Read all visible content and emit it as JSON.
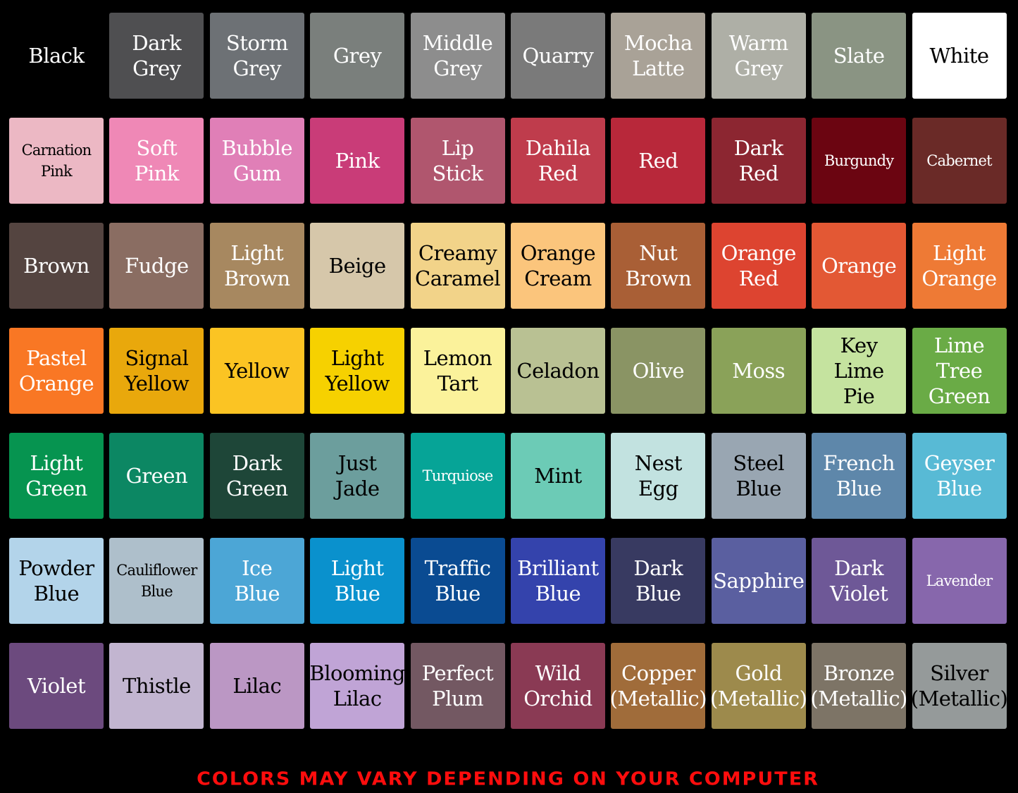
{
  "swatches": [
    {
      "lines": [
        "Black"
      ],
      "color": "#000000",
      "text": "#ffffff"
    },
    {
      "lines": [
        "Dark",
        "Grey"
      ],
      "color": "#4f4f51",
      "text": "#ffffff"
    },
    {
      "lines": [
        "Storm",
        "Grey"
      ],
      "color": "#6d7175",
      "text": "#ffffff"
    },
    {
      "lines": [
        "Grey"
      ],
      "color": "#7a7f7c",
      "text": "#ffffff"
    },
    {
      "lines": [
        "Middle",
        "Grey"
      ],
      "color": "#8d8d8d",
      "text": "#ffffff"
    },
    {
      "lines": [
        "Quarry"
      ],
      "color": "#7a7a7a",
      "text": "#ffffff"
    },
    {
      "lines": [
        "Mocha",
        "Latte"
      ],
      "color": "#a9a297",
      "text": "#ffffff"
    },
    {
      "lines": [
        "Warm",
        "Grey"
      ],
      "color": "#aeafa6",
      "text": "#ffffff"
    },
    {
      "lines": [
        "Slate"
      ],
      "color": "#8a9483",
      "text": "#ffffff"
    },
    {
      "lines": [
        "White"
      ],
      "color": "#ffffff",
      "text": "#000000"
    },
    {
      "lines": [
        "Carnation",
        "Pink"
      ],
      "color": "#ecb8c4",
      "text": "#000000"
    },
    {
      "lines": [
        "Soft",
        "Pink"
      ],
      "color": "#ef88b6",
      "text": "#ffffff"
    },
    {
      "lines": [
        "Bubble",
        "Gum"
      ],
      "color": "#e07fb7",
      "text": "#ffffff"
    },
    {
      "lines": [
        "Pink"
      ],
      "color": "#c93c78",
      "text": "#ffffff"
    },
    {
      "lines": [
        "Lip",
        "Stick"
      ],
      "color": "#b0566e",
      "text": "#ffffff"
    },
    {
      "lines": [
        "Dahila",
        "Red"
      ],
      "color": "#bf3c4c",
      "text": "#ffffff"
    },
    {
      "lines": [
        "Red"
      ],
      "color": "#b8283a",
      "text": "#ffffff"
    },
    {
      "lines": [
        "Dark",
        "Red"
      ],
      "color": "#8c2631",
      "text": "#ffffff"
    },
    {
      "lines": [
        "Burgundy"
      ],
      "color": "#6b0511",
      "text": "#ffffff"
    },
    {
      "lines": [
        "Cabernet"
      ],
      "color": "#6a2a27",
      "text": "#ffffff"
    },
    {
      "lines": [
        "Brown"
      ],
      "color": "#544440",
      "text": "#ffffff"
    },
    {
      "lines": [
        "Fudge"
      ],
      "color": "#8a6d62",
      "text": "#ffffff"
    },
    {
      "lines": [
        "Light",
        "Brown"
      ],
      "color": "#a78860",
      "text": "#ffffff"
    },
    {
      "lines": [
        "Beige"
      ],
      "color": "#d6c7aa",
      "text": "#000000"
    },
    {
      "lines": [
        "Creamy",
        "Caramel"
      ],
      "color": "#f2d389",
      "text": "#000000"
    },
    {
      "lines": [
        "Orange",
        "Cream"
      ],
      "color": "#fbc57c",
      "text": "#000000"
    },
    {
      "lines": [
        "Nut",
        "Brown"
      ],
      "color": "#a95f36",
      "text": "#ffffff"
    },
    {
      "lines": [
        "Orange",
        "Red"
      ],
      "color": "#dd4430",
      "text": "#ffffff"
    },
    {
      "lines": [
        "Orange"
      ],
      "color": "#e35834",
      "text": "#ffffff"
    },
    {
      "lines": [
        "Light",
        "Orange"
      ],
      "color": "#ee7a35",
      "text": "#ffffff"
    },
    {
      "lines": [
        "Pastel",
        "Orange"
      ],
      "color": "#f97724",
      "text": "#ffffff"
    },
    {
      "lines": [
        "Signal",
        "Yellow"
      ],
      "color": "#e9a80c",
      "text": "#000000"
    },
    {
      "lines": [
        "Yellow"
      ],
      "color": "#fbc423",
      "text": "#000000"
    },
    {
      "lines": [
        "Light",
        "Yellow"
      ],
      "color": "#f6d100",
      "text": "#000000"
    },
    {
      "lines": [
        "Lemon",
        "Tart"
      ],
      "color": "#fbf29b",
      "text": "#000000"
    },
    {
      "lines": [
        "Celadon"
      ],
      "color": "#b9c193",
      "text": "#000000"
    },
    {
      "lines": [
        "Olive"
      ],
      "color": "#8a9464",
      "text": "#ffffff"
    },
    {
      "lines": [
        "Moss"
      ],
      "color": "#8aa259",
      "text": "#ffffff"
    },
    {
      "lines": [
        "Key",
        "Lime",
        "Pie"
      ],
      "color": "#c5e39f",
      "text": "#000000"
    },
    {
      "lines": [
        "Lime",
        "Tree",
        "Green"
      ],
      "color": "#6aab46",
      "text": "#ffffff"
    },
    {
      "lines": [
        "Light",
        "Green"
      ],
      "color": "#069450",
      "text": "#ffffff"
    },
    {
      "lines": [
        "Green"
      ],
      "color": "#0c8763",
      "text": "#ffffff"
    },
    {
      "lines": [
        "Dark",
        "Green"
      ],
      "color": "#1e4638",
      "text": "#ffffff"
    },
    {
      "lines": [
        "Just",
        "Jade"
      ],
      "color": "#6c9e9d",
      "text": "#000000"
    },
    {
      "lines": [
        "Turquiose"
      ],
      "color": "#06a497",
      "text": "#ffffff"
    },
    {
      "lines": [
        "Mint"
      ],
      "color": "#6ccbb6",
      "text": "#000000"
    },
    {
      "lines": [
        "Nest",
        "Egg"
      ],
      "color": "#c2e2e0",
      "text": "#000000"
    },
    {
      "lines": [
        "Steel",
        "Blue"
      ],
      "color": "#99a6b2",
      "text": "#000000"
    },
    {
      "lines": [
        "French",
        "Blue"
      ],
      "color": "#5e87aa",
      "text": "#ffffff"
    },
    {
      "lines": [
        "Geyser",
        "Blue"
      ],
      "color": "#58bad5",
      "text": "#ffffff"
    },
    {
      "lines": [
        "Powder",
        "Blue"
      ],
      "color": "#b3d4ea",
      "text": "#000000"
    },
    {
      "lines": [
        "Cauliflower",
        "Blue"
      ],
      "color": "#aebfcb",
      "text": "#000000"
    },
    {
      "lines": [
        "Ice",
        "Blue"
      ],
      "color": "#4ca6d6",
      "text": "#ffffff"
    },
    {
      "lines": [
        "Light",
        "Blue"
      ],
      "color": "#0a91cd",
      "text": "#ffffff"
    },
    {
      "lines": [
        "Traffic",
        "Blue"
      ],
      "color": "#0a4b92",
      "text": "#ffffff"
    },
    {
      "lines": [
        "Brilliant",
        "Blue"
      ],
      "color": "#3443ac",
      "text": "#ffffff"
    },
    {
      "lines": [
        "Dark",
        "Blue"
      ],
      "color": "#383a61",
      "text": "#ffffff"
    },
    {
      "lines": [
        "Sapphire"
      ],
      "color": "#5a5fa0",
      "text": "#ffffff"
    },
    {
      "lines": [
        "Dark",
        "Violet"
      ],
      "color": "#6e5897",
      "text": "#ffffff"
    },
    {
      "lines": [
        "Lavender"
      ],
      "color": "#8767ac",
      "text": "#ffffff"
    },
    {
      "lines": [
        "Violet"
      ],
      "color": "#6c4a7e",
      "text": "#ffffff"
    },
    {
      "lines": [
        "Thistle"
      ],
      "color": "#c2b5d0",
      "text": "#000000"
    },
    {
      "lines": [
        "Lilac"
      ],
      "color": "#bb97c4",
      "text": "#000000"
    },
    {
      "lines": [
        "Blooming",
        "Lilac"
      ],
      "color": "#c0a4d6",
      "text": "#000000"
    },
    {
      "lines": [
        "Perfect",
        "Plum"
      ],
      "color": "#735862",
      "text": "#ffffff"
    },
    {
      "lines": [
        "Wild",
        "Orchid"
      ],
      "color": "#8a3a54",
      "text": "#ffffff"
    },
    {
      "lines": [
        "Copper",
        "(Metallic)"
      ],
      "color": "#a06c3a",
      "text": "#ffffff"
    },
    {
      "lines": [
        "Gold",
        "(Metallic)"
      ],
      "color": "#9d8a4c",
      "text": "#ffffff"
    },
    {
      "lines": [
        "Bronze",
        "(Metallic)"
      ],
      "color": "#7d7466",
      "text": "#ffffff"
    },
    {
      "lines": [
        "Silver",
        "(Metallic)"
      ],
      "color": "#959a9a",
      "text": "#000000"
    }
  ],
  "footer": "COLORS MAY VARY DEPENDING ON YOUR COMPUTER",
  "footer_color": "#ff0d0d"
}
